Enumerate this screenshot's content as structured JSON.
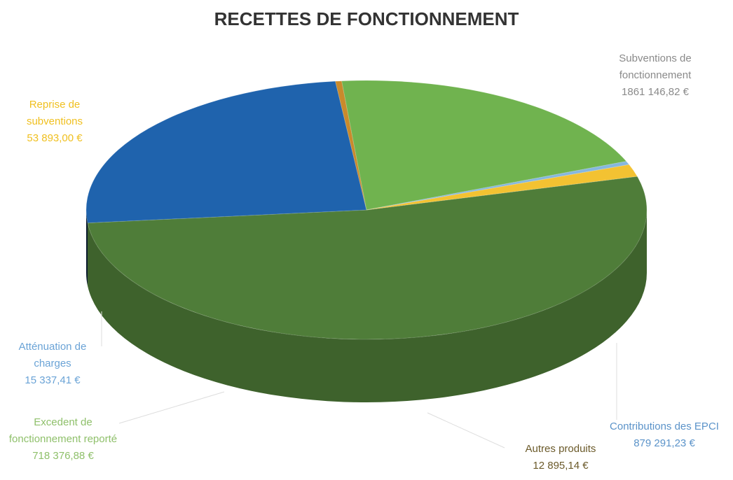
{
  "chart_data": {
    "type": "pie",
    "title": "RECETTES DE FONCTIONNEMENT",
    "categories": [
      "Subventions de fonctionnement",
      "Contributions des EPCI",
      "Autres produits",
      "Excedent de fonctionnement reporté",
      "Atténuation de charges",
      "Reprise de subventions"
    ],
    "values": [
      1861146.82,
      879291.23,
      12895.14,
      718376.88,
      15337.41,
      53893.0
    ],
    "value_labels": [
      "1861 146,82 €",
      "879 291,23 €",
      "12 895,14 €",
      "718 376,88 €",
      "15 337,41 €",
      "53 893,00 €"
    ],
    "colors": [
      "#4f7d39",
      "#1f63ad",
      "#c98a2c",
      "#70b34f",
      "#86b7de",
      "#f3c232"
    ]
  }
}
